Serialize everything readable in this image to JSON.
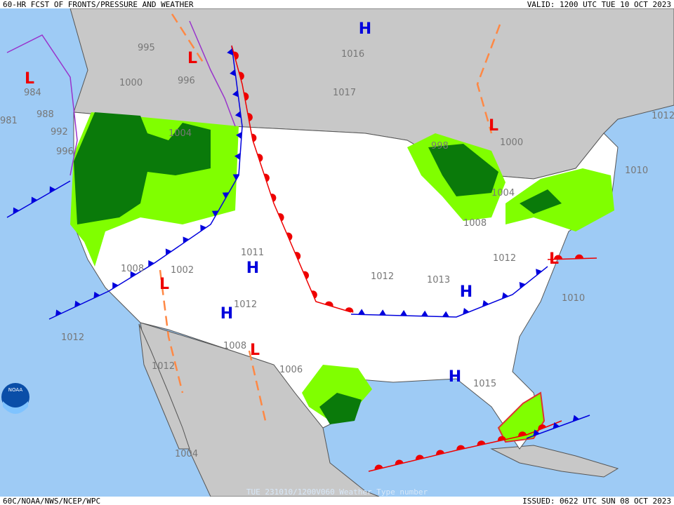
{
  "header": {
    "left": "60-HR FCST OF FRONTS/PRESSURE AND WEATHER",
    "right": "VALID: 1200 UTC TUE 10 OCT 2023"
  },
  "footer": {
    "left": "60C/NOAA/NWS/NCEP/WPC",
    "center": "TUE 231010/1200V060 Weather Type number",
    "right": "ISSUED: 0622 UTC SUN 08 OCT 2023"
  },
  "logo": "NOAA",
  "centers": [
    "H",
    "H",
    "H",
    "H",
    "H",
    "L",
    "L",
    "L",
    "L",
    "L",
    "L"
  ],
  "isobars": [
    995,
    1000,
    984,
    988,
    992,
    996,
    981,
    996,
    1016,
    1017,
    1000,
    1004,
    998,
    1004,
    1008,
    1011,
    1008,
    1002,
    1012,
    1013,
    1012,
    1010,
    1012,
    1012,
    1008,
    1006,
    1015,
    1012,
    1004,
    1012,
    1010
  ]
}
